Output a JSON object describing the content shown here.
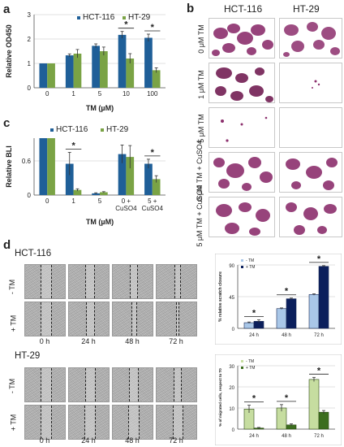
{
  "panels": {
    "a": "a",
    "b": "b",
    "c": "c",
    "d": "d"
  },
  "colors": {
    "hct": "#1f5f98",
    "ht": "#7aa345",
    "dmso_light": "#a9c7e8",
    "tm_dark": "#0b1f5c",
    "green_light": "#c6dda0",
    "green_dark": "#3c6e1e",
    "stain": "#8c2f6d"
  },
  "chart_data": [
    {
      "id": "a",
      "type": "bar",
      "categories": [
        "0",
        "1",
        "5",
        "10",
        "100"
      ],
      "series": [
        {
          "name": "HCT-116",
          "values": [
            1.0,
            1.33,
            1.72,
            2.17,
            2.05
          ],
          "errors": [
            0.0,
            0.06,
            0.08,
            0.14,
            0.15
          ]
        },
        {
          "name": "HT-29",
          "values": [
            1.0,
            1.4,
            1.5,
            1.2,
            0.72
          ],
          "errors": [
            0.0,
            0.17,
            0.17,
            0.2,
            0.1
          ]
        }
      ],
      "ylabel": "Relative OD450",
      "xlabel": "TM (µM)",
      "ylim": [
        0,
        3
      ],
      "yticks": [
        "0",
        "1",
        "2",
        "3"
      ],
      "significance": [
        "*",
        "*"
      ]
    },
    {
      "id": "c",
      "type": "bar",
      "categories": [
        "0",
        "1",
        "5",
        "0 +\nCuSO4",
        "5 +\nCuSO4"
      ],
      "series": [
        {
          "name": "HCT-116",
          "values": [
            1.0,
            0.55,
            0.03,
            0.72,
            0.55
          ],
          "errors": [
            0.0,
            0.2,
            0.01,
            0.16,
            0.08
          ]
        },
        {
          "name": "HT-29",
          "values": [
            1.0,
            0.09,
            0.05,
            0.67,
            0.28
          ],
          "errors": [
            0.0,
            0.02,
            0.01,
            0.2,
            0.06
          ]
        }
      ],
      "ylabel": "Relative BLI",
      "xlabel": "TM (µM)",
      "ylim": [
        0,
        1
      ],
      "yticks": [
        "0",
        "0.6"
      ],
      "significance": [
        "*",
        "*"
      ]
    },
    {
      "id": "d-hct",
      "type": "bar",
      "categories": [
        "24 h",
        "48 h",
        "72 h"
      ],
      "series": [
        {
          "name": "- TM",
          "values": [
            8,
            28,
            48
          ],
          "errors": [
            1,
            1,
            1
          ]
        },
        {
          "name": "+ TM",
          "values": [
            10,
            42,
            88
          ],
          "errors": [
            2,
            1,
            1
          ]
        }
      ],
      "ylabel": "% relative scratch closure",
      "ylim": [
        0,
        90
      ],
      "yticks": [
        "0",
        "45",
        "90"
      ],
      "significance": [
        "*",
        "*",
        "*"
      ]
    },
    {
      "id": "d-ht",
      "type": "bar",
      "categories": [
        "24 h",
        "48 h",
        "72 h"
      ],
      "series": [
        {
          "name": "- TM",
          "values": [
            9.5,
            10,
            23.5
          ],
          "errors": [
            1.8,
            1.6,
            1.0
          ]
        },
        {
          "name": "+ TM",
          "values": [
            0.5,
            2,
            8
          ],
          "errors": [
            0.3,
            0.5,
            0.8
          ]
        }
      ],
      "ylabel": "% of migrated cells, respect to T0",
      "ylim": [
        0,
        30
      ],
      "yticks": [
        "0",
        "10",
        "20",
        "30"
      ],
      "significance": [
        "*",
        "*",
        "*"
      ]
    }
  ],
  "panel_b": {
    "col_headers": [
      "HCT-116",
      "HT-29"
    ],
    "row_labels": [
      "0 μM TM",
      "1 μM TM",
      "5 μM TM",
      "0 μM TM + CuSO4",
      "5 μM TM + CuSO4"
    ]
  },
  "panel_d": {
    "hct_title": "HCT-116",
    "ht_title": "HT-29",
    "row_labels": [
      "- TM",
      "+ TM"
    ],
    "time_labels": [
      "0 h",
      "24 h",
      "48 h",
      "72 h"
    ]
  }
}
